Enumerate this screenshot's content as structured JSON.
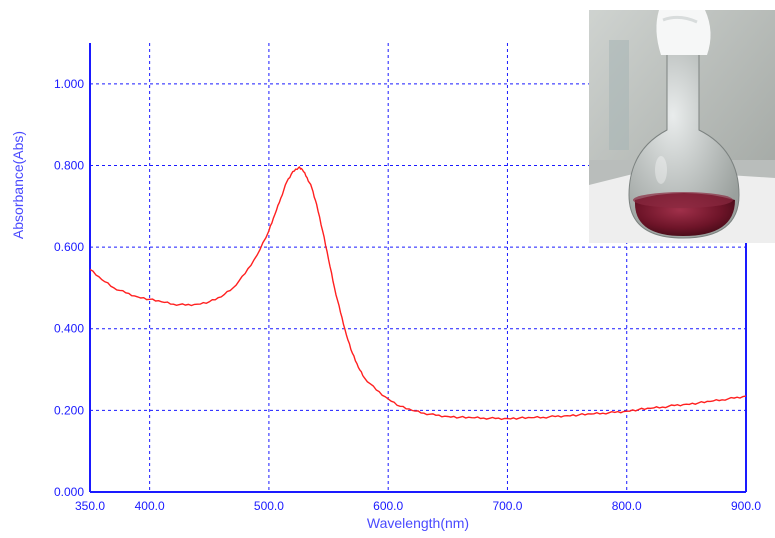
{
  "chart_data": {
    "type": "line",
    "title": "",
    "xlabel": "Wavelength(nm)",
    "ylabel": "Absorbance(Abs)",
    "xlim": [
      350,
      900
    ],
    "ylim": [
      0,
      1.1
    ],
    "x_ticks": [
      350,
      400,
      500,
      600,
      700,
      800,
      900
    ],
    "x_tick_labels": [
      "350.0",
      "400.0",
      "500.0",
      "600.0",
      "700.0",
      "800.0",
      "900.0"
    ],
    "y_ticks": [
      0,
      0.2,
      0.4,
      0.6,
      0.8,
      1.0
    ],
    "y_tick_labels": [
      "0.000",
      "0.200",
      "0.400",
      "0.600",
      "0.800",
      "1.000"
    ],
    "grid": true,
    "colors": {
      "axis": "#1a1aff",
      "grid": "#1a1aff",
      "line": "#ff2020"
    },
    "series": [
      {
        "x": [
          350,
          360,
          370,
          380,
          390,
          400,
          410,
          420,
          430,
          440,
          450,
          460,
          470,
          480,
          490,
          500,
          505,
          510,
          515,
          520,
          525,
          528,
          532,
          536,
          540,
          545,
          550,
          555,
          560,
          565,
          570,
          575,
          580,
          590,
          600,
          610,
          620,
          630,
          640,
          650,
          660,
          670,
          680,
          690,
          700,
          710,
          720,
          730,
          740,
          750,
          760,
          770,
          780,
          790,
          800,
          810,
          820,
          830,
          840,
          850,
          860,
          870,
          880,
          890,
          900
        ],
        "y": [
          0.545,
          0.52,
          0.5,
          0.488,
          0.478,
          0.472,
          0.466,
          0.46,
          0.458,
          0.46,
          0.466,
          0.478,
          0.5,
          0.535,
          0.58,
          0.64,
          0.68,
          0.72,
          0.76,
          0.785,
          0.795,
          0.79,
          0.77,
          0.745,
          0.705,
          0.64,
          0.57,
          0.5,
          0.44,
          0.385,
          0.34,
          0.305,
          0.28,
          0.25,
          0.228,
          0.21,
          0.2,
          0.193,
          0.188,
          0.185,
          0.183,
          0.182,
          0.181,
          0.18,
          0.18,
          0.181,
          0.182,
          0.183,
          0.185,
          0.187,
          0.189,
          0.191,
          0.193,
          0.195,
          0.198,
          0.202,
          0.205,
          0.208,
          0.212,
          0.215,
          0.218,
          0.222,
          0.226,
          0.23,
          0.235
        ]
      }
    ]
  },
  "photo": {
    "subject": "round-bottom-flask-with-red-solution"
  }
}
